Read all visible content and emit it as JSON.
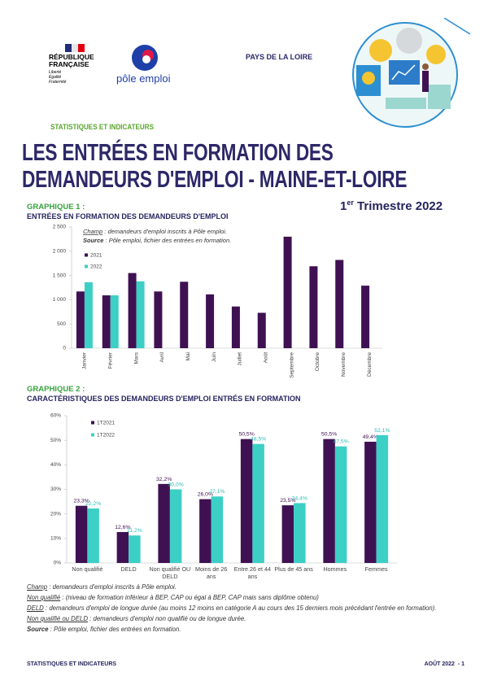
{
  "header": {
    "republic": "RÉPUBLIQUE FRANÇAISE",
    "motto": [
      "Liberté",
      "Égalité",
      "Fraternité"
    ],
    "brand": "pôle emploi",
    "region": "PAYS DE LA LOIRE",
    "section": "STATISTIQUES ET INDICATEURS",
    "title": [
      "LES ENTRÉES EN FORMATION DES",
      "DEMANDEURS D'EMPLOI - MAINE-ET-LOIRE"
    ],
    "period": {
      "num": "1",
      "sup": "er",
      "text": "Trimestre 2022"
    }
  },
  "chart_data": [
    {
      "type": "bar",
      "label": "GRAPHIQUE 1 :",
      "title": "ENTRÉES EN FORMATION DES DEMANDEURS D'EMPLOI",
      "annotations": [
        {
          "term": "Champ",
          "text": ": demandeurs d'emploi inscrits à Pôle emploi."
        },
        {
          "term": "Source",
          "text": ": Pôle emploi, fichier des entrées en formation."
        }
      ],
      "categories": [
        "Janvier",
        "Février",
        "Mars",
        "Avril",
        "Mai",
        "Juin",
        "Juillet",
        "Août",
        "Septembre",
        "Octobre",
        "Novembre",
        "Décembre"
      ],
      "series": [
        {
          "name": "2021",
          "color": "#3f1152",
          "values": [
            1170,
            1090,
            1550,
            1170,
            1370,
            1110,
            860,
            730,
            2300,
            1690,
            1820,
            1290
          ]
        },
        {
          "name": "2022",
          "color": "#3ccfc6",
          "values": [
            1360,
            1090,
            1380,
            null,
            null,
            null,
            null,
            null,
            null,
            null,
            null,
            null
          ]
        }
      ],
      "ylim": [
        0,
        2500
      ],
      "yticks": [
        0,
        500,
        {
          "value": 1000,
          "label": "1 000"
        },
        {
          "value": 1500,
          "label": "1 500"
        },
        {
          "value": 2000,
          "label": "2 000"
        },
        {
          "value": 2500,
          "label": "2 500"
        }
      ]
    },
    {
      "type": "bar",
      "label": "GRAPHIQUE 2 :",
      "title": "CARACTÉRISTIQUES DES DEMANDEURS D'EMPLOI ENTRÉS EN FORMATION",
      "categories": [
        "Non qualifié",
        "DELD",
        "Non qualifié OU DELD",
        "Moins de 26 ans",
        "Entre 26 et 44 ans",
        "Plus de 45 ans",
        "Hommes",
        "Femmes"
      ],
      "series": [
        {
          "name": "1T2021",
          "color": "#3f1152",
          "values": [
            23.3,
            12.6,
            32.2,
            26.0,
            50.5,
            23.5,
            50.5,
            49.4
          ],
          "value_labels": [
            "23,3%",
            "12,6%",
            "32,2%",
            "26,0%",
            "50,5%",
            "23,5%",
            "50,5%",
            "49,4%"
          ]
        },
        {
          "name": "1T2022",
          "color": "#3ccfc6",
          "values": [
            22.2,
            11.2,
            30.0,
            27.1,
            48.5,
            24.4,
            47.5,
            52.1
          ],
          "value_labels": [
            "22,2%",
            "11,2%",
            "30,0%",
            "27,1%",
            "48,5%",
            "24,4%",
            "47,5%",
            "52,1%"
          ]
        }
      ],
      "ylim": [
        0,
        60
      ],
      "yticks": [
        {
          "value": 0,
          "label": "0%"
        },
        {
          "value": 10,
          "label": "10%"
        },
        {
          "value": 20,
          "label": "20%"
        },
        {
          "value": 30,
          "label": "30%"
        },
        {
          "value": 40,
          "label": "40%"
        },
        {
          "value": 50,
          "label": "50%"
        },
        {
          "value": 60,
          "label": "60%"
        }
      ]
    }
  ],
  "notes": [
    {
      "term": "Champ",
      "text": ": demandeurs d'emploi inscrits à Pôle emploi."
    },
    {
      "term": "Non qualifié",
      "text": ": (niveau de formation inférieur à BEP, CAP ou égal à BEP, CAP mais sans diplôme obtenu)"
    },
    {
      "term": "DELD",
      "text": ": demandeurs d'emploi de longue durée (au moins 12 moins en catégorie A au cours des 15 derniers mois précédant l'entrée en formation)."
    },
    {
      "term": "Non qualifié ou DELD",
      "text": ": demandeurs d'emploi non qualifié ou de longue durée."
    },
    {
      "term": "Source",
      "text": ": Pôle emploi, fichier des entrées en formation."
    }
  ],
  "footer": {
    "left": "STATISTIQUES ET INDICATEURS",
    "right": "AOÛT 2022  - 1"
  }
}
